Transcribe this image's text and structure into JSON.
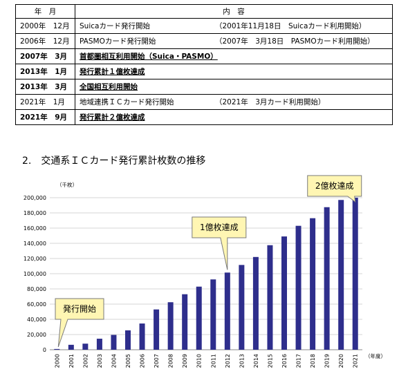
{
  "table": {
    "headers": [
      "年　月",
      "内　容"
    ],
    "rows": [
      {
        "date": "2000年　12月",
        "event": "Suicaカード発行開始",
        "note": "（2001年11月18日　Suicaカード利用開始）",
        "bold": false
      },
      {
        "date": "2006年　12月",
        "event": "PASMOカード発行開始",
        "note": "（2007年　3月18日　PASMOカード利用開始）",
        "bold": false
      },
      {
        "date": "2007年　3月",
        "event": "首都圏相互利用開始（Suica・PASMO）",
        "note": "",
        "bold": true
      },
      {
        "date": "2013年　1月",
        "event": "発行累計１億枚達成",
        "note": "",
        "bold": true
      },
      {
        "date": "2013年　3月",
        "event": "全国相互利用開始",
        "note": "",
        "bold": true
      },
      {
        "date": "2021年　1月",
        "event": "地域連携ＩＣカード発行開始",
        "note": "（2021年　3月カード利用開始）",
        "bold": false
      },
      {
        "date": "2021年　9月",
        "event": "発行累計２億枚達成",
        "note": "",
        "bold": true
      }
    ]
  },
  "section_heading": "2.　交通系ＩＣカード発行累計枚数の推移",
  "chart_data": {
    "type": "bar",
    "y_unit": "（千枚）",
    "x_unit": "（年度）",
    "categories": [
      "2000",
      "2001",
      "2002",
      "2003",
      "2004",
      "2005",
      "2006",
      "2007",
      "2008",
      "2009",
      "2010",
      "2011",
      "2012",
      "2013",
      "2014",
      "2015",
      "2016",
      "2017",
      "2018",
      "2019",
      "2020",
      "2021"
    ],
    "values": [
      1000,
      6500,
      8000,
      14500,
      19500,
      25500,
      34500,
      53000,
      62500,
      73000,
      83000,
      92500,
      101500,
      111500,
      122000,
      137500,
      149000,
      163000,
      173000,
      187500,
      197000,
      200000
    ],
    "ylim": [
      0,
      200000
    ],
    "yticks": [
      "0",
      "20,000",
      "40,000",
      "60,000",
      "80,000",
      "100,000",
      "120,000",
      "140,000",
      "160,000",
      "180,000",
      "200,000"
    ],
    "grid": true,
    "bar_color": "#2e2e8c",
    "annotations": [
      {
        "text": "発行開始",
        "category": "2000"
      },
      {
        "text": "1億枚達成",
        "category": "2012"
      },
      {
        "text": "2億枚達成",
        "category": "2021"
      }
    ],
    "callout_fill": "#fff6b3"
  }
}
